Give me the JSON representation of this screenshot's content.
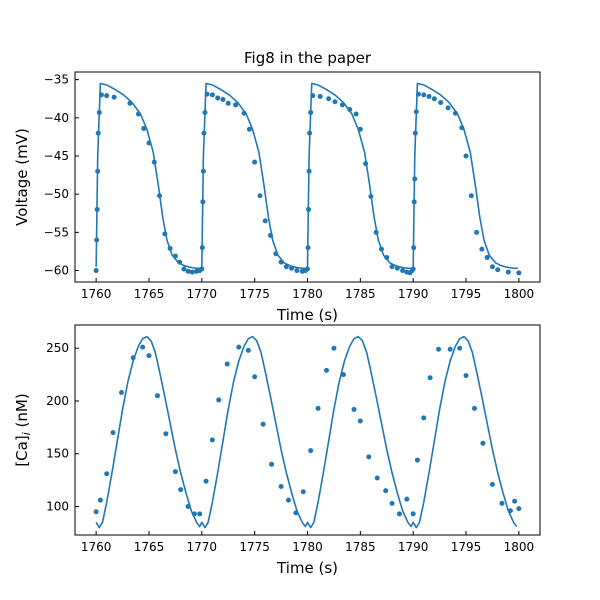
{
  "colors": {
    "series": "#1f77b4"
  },
  "chart_data": [
    {
      "type": "line",
      "title": "Fig8 in the paper",
      "xlabel": "Time (s)",
      "ylabel": "Voltage (mV)",
      "xlim": [
        1758,
        1802
      ],
      "ylim": [
        -61.5,
        -34
      ],
      "xticks": [
        1760,
        1765,
        1770,
        1775,
        1780,
        1785,
        1790,
        1795,
        1800
      ],
      "yticks": [
        -60,
        -55,
        -50,
        -45,
        -40,
        -35
      ],
      "grid": false,
      "line": {
        "x": [
          1760.0,
          1760.15,
          1760.4,
          1761.0,
          1761.8,
          1762.6,
          1763.4,
          1764.2,
          1764.8,
          1765.4,
          1765.9,
          1766.3,
          1766.7,
          1767.2,
          1767.8,
          1768.4,
          1769.0,
          1769.5,
          1769.9,
          1770.0,
          1770.15,
          1770.4,
          1771.0,
          1771.8,
          1772.6,
          1773.4,
          1774.2,
          1774.8,
          1775.4,
          1775.9,
          1776.3,
          1776.7,
          1777.2,
          1777.8,
          1778.4,
          1779.0,
          1779.5,
          1779.9,
          1780.0,
          1780.15,
          1780.4,
          1781.0,
          1781.8,
          1782.6,
          1783.4,
          1784.2,
          1784.8,
          1785.4,
          1785.9,
          1786.3,
          1786.7,
          1787.2,
          1787.8,
          1788.4,
          1789.0,
          1789.5,
          1789.9,
          1790.0,
          1790.15,
          1790.4,
          1791.0,
          1791.8,
          1792.6,
          1793.4,
          1794.2,
          1794.8,
          1795.4,
          1795.9,
          1796.3,
          1796.7,
          1797.2,
          1797.8,
          1798.4,
          1799.0,
          1799.5,
          1799.9
        ],
        "y": [
          -59.5,
          -45,
          -35.5,
          -35.7,
          -36.3,
          -37.0,
          -38.0,
          -39.5,
          -41.5,
          -44.5,
          -49,
          -53,
          -56,
          -58.0,
          -59.0,
          -59.4,
          -59.6,
          -59.7,
          -59.7,
          -59.5,
          -45,
          -35.5,
          -35.7,
          -36.3,
          -37.0,
          -38.0,
          -39.5,
          -41.5,
          -44.5,
          -49,
          -53,
          -56,
          -58.0,
          -59.0,
          -59.4,
          -59.6,
          -59.7,
          -59.7,
          -59.5,
          -45,
          -35.5,
          -35.7,
          -36.3,
          -37.0,
          -38.0,
          -39.5,
          -41.5,
          -44.5,
          -49,
          -53,
          -56,
          -58.0,
          -59.0,
          -59.4,
          -59.6,
          -59.7,
          -59.7,
          -59.5,
          -45,
          -35.5,
          -35.7,
          -36.3,
          -37.0,
          -38.0,
          -39.5,
          -41.5,
          -44.5,
          -49,
          -53,
          -56,
          -58.0,
          -59.0,
          -59.4,
          -59.6,
          -59.7,
          -59.7
        ]
      },
      "points": {
        "x": [
          1760.0,
          1760.05,
          1760.1,
          1760.15,
          1760.2,
          1760.3,
          1760.5,
          1761.0,
          1761.7,
          1763.2,
          1764.0,
          1764.5,
          1765.0,
          1765.5,
          1766.0,
          1766.5,
          1767.0,
          1767.5,
          1767.9,
          1768.3,
          1768.7,
          1769.1,
          1769.5,
          1769.8,
          1770.0,
          1770.05,
          1770.1,
          1770.15,
          1770.2,
          1770.3,
          1770.5,
          1771.0,
          1771.5,
          1772.0,
          1772.5,
          1773.2,
          1774.0,
          1774.5,
          1775.0,
          1775.5,
          1776.0,
          1776.5,
          1777.0,
          1777.5,
          1778.0,
          1778.5,
          1779.0,
          1779.5,
          1779.8,
          1780.0,
          1780.05,
          1780.1,
          1780.15,
          1780.2,
          1780.3,
          1780.5,
          1781.2,
          1782.0,
          1782.6,
          1783.3,
          1784.0,
          1784.6,
          1785.0,
          1785.5,
          1786.0,
          1786.5,
          1787.0,
          1787.5,
          1788.0,
          1788.5,
          1789.0,
          1789.4,
          1789.7,
          1789.9,
          1790.0,
          1790.05,
          1790.1,
          1790.15,
          1790.2,
          1790.3,
          1790.5,
          1791.0,
          1791.5,
          1792.0,
          1792.6,
          1793.3,
          1794.0,
          1794.6,
          1795.0,
          1795.5,
          1796.0,
          1796.5,
          1797.0,
          1797.5,
          1798.0,
          1799.0,
          1800.0
        ],
        "y": [
          -60,
          -56,
          -52,
          -47,
          -42,
          -39.3,
          -37,
          -37.1,
          -37.3,
          -38.1,
          -39.5,
          -41.4,
          -43.3,
          -45.8,
          -50.2,
          -55.2,
          -57.1,
          -58.1,
          -58.9,
          -59.8,
          -60.1,
          -60.2,
          -60.1,
          -60.0,
          -59.8,
          -57,
          -51,
          -47,
          -42,
          -39.3,
          -36.9,
          -37.0,
          -37.4,
          -37.6,
          -38.1,
          -38.3,
          -39.4,
          -41.5,
          -45.8,
          -50.2,
          -53.5,
          -55.4,
          -57.8,
          -58.9,
          -59.5,
          -59.7,
          -60.0,
          -60.1,
          -60.0,
          -59.8,
          -57,
          -52,
          -47,
          -42,
          -39.3,
          -37.1,
          -37.2,
          -37.5,
          -37.9,
          -38.3,
          -38.9,
          -39.5,
          -41.5,
          -46.0,
          -50.3,
          -55.0,
          -57.2,
          -58.3,
          -59.5,
          -59.7,
          -60.0,
          -60.2,
          -60.3,
          -60.0,
          -59.8,
          -57,
          -51,
          -48,
          -42,
          -39.2,
          -36.9,
          -37.0,
          -37.2,
          -37.5,
          -38.0,
          -38.7,
          -39.4,
          -41.3,
          -45.0,
          -50.2,
          -55.0,
          -57.2,
          -58.3,
          -59.5,
          -59.9,
          -60.2,
          -60.3
        ]
      }
    },
    {
      "type": "line",
      "title": "",
      "xlabel": "Time (s)",
      "ylabel": "[Ca]",
      "ylabel_subscript": "i",
      "ylabel_unit": " (nM)",
      "xlim": [
        1758,
        1802
      ],
      "ylim": [
        73,
        272
      ],
      "xticks": [
        1760,
        1765,
        1770,
        1775,
        1780,
        1785,
        1790,
        1795,
        1800
      ],
      "yticks": [
        100,
        150,
        200,
        250
      ],
      "grid": false,
      "line": {
        "x": [
          1760.0,
          1760.3,
          1760.6,
          1761.0,
          1761.5,
          1762.0,
          1762.5,
          1763.0,
          1763.5,
          1764.0,
          1764.4,
          1764.8,
          1765.2,
          1765.6,
          1766.0,
          1766.5,
          1767.0,
          1767.5,
          1768.0,
          1768.5,
          1769.0,
          1769.5,
          1769.8,
          1770.0,
          1770.3,
          1770.6,
          1771.0,
          1771.5,
          1772.0,
          1772.5,
          1773.0,
          1773.5,
          1774.0,
          1774.4,
          1774.8,
          1775.2,
          1775.6,
          1776.0,
          1776.5,
          1777.0,
          1777.5,
          1778.0,
          1778.5,
          1779.0,
          1779.5,
          1779.8,
          1780.0,
          1780.3,
          1780.6,
          1781.0,
          1781.5,
          1782.0,
          1782.5,
          1783.0,
          1783.5,
          1784.0,
          1784.4,
          1784.8,
          1785.2,
          1785.6,
          1786.0,
          1786.5,
          1787.0,
          1787.5,
          1788.0,
          1788.5,
          1789.0,
          1789.5,
          1789.8,
          1790.0,
          1790.3,
          1790.6,
          1791.0,
          1791.5,
          1792.0,
          1792.5,
          1793.0,
          1793.5,
          1794.0,
          1794.4,
          1794.8,
          1795.2,
          1795.6,
          1796.0,
          1796.5,
          1797.0,
          1797.5,
          1798.0,
          1798.5,
          1799.0,
          1799.5,
          1799.8
        ],
        "y": [
          85,
          80,
          85,
          104,
          132,
          162,
          192,
          218,
          238,
          252,
          259,
          261,
          257,
          246,
          228,
          204,
          179,
          154,
          132,
          113,
          96,
          85,
          81,
          85,
          80,
          85,
          104,
          132,
          162,
          192,
          218,
          238,
          252,
          259,
          261,
          257,
          246,
          228,
          204,
          179,
          154,
          132,
          113,
          96,
          85,
          81,
          85,
          80,
          85,
          104,
          132,
          162,
          192,
          218,
          238,
          252,
          259,
          261,
          257,
          246,
          228,
          204,
          179,
          154,
          132,
          113,
          96,
          85,
          81,
          85,
          80,
          85,
          104,
          132,
          162,
          192,
          218,
          238,
          252,
          259,
          261,
          257,
          246,
          228,
          204,
          179,
          154,
          132,
          113,
          96,
          85,
          81
        ]
      },
      "points": {
        "x": [
          1760.0,
          1760.4,
          1761.0,
          1761.6,
          1762.4,
          1763.5,
          1764.4,
          1765.0,
          1765.8,
          1766.6,
          1767.5,
          1768.0,
          1768.7,
          1769.3,
          1769.8,
          1770.4,
          1771.0,
          1771.6,
          1772.4,
          1773.5,
          1774.4,
          1775.0,
          1775.8,
          1776.6,
          1777.5,
          1778.2,
          1778.9,
          1779.6,
          1780.3,
          1781.0,
          1781.8,
          1782.5,
          1783.4,
          1784.4,
          1785.0,
          1785.8,
          1786.6,
          1787.4,
          1788.0,
          1788.7,
          1789.4,
          1790.0,
          1790.4,
          1791.0,
          1791.6,
          1792.4,
          1793.5,
          1794.4,
          1795.0,
          1795.8,
          1796.6,
          1797.5,
          1798.4,
          1799.2,
          1799.6,
          1800.0
        ],
        "y": [
          95,
          106,
          131,
          170,
          208,
          241,
          251,
          243,
          205,
          169,
          133,
          116,
          100,
          93,
          93,
          124,
          163,
          201,
          235,
          251,
          248,
          223,
          178,
          140,
          119,
          106,
          94,
          114,
          153,
          193,
          229,
          250,
          225,
          192,
          181,
          147,
          127,
          115,
          103,
          93,
          107,
          93,
          144,
          184,
          222,
          249,
          249,
          250,
          224,
          193,
          160,
          121,
          103,
          96,
          105,
          98
        ]
      }
    }
  ]
}
